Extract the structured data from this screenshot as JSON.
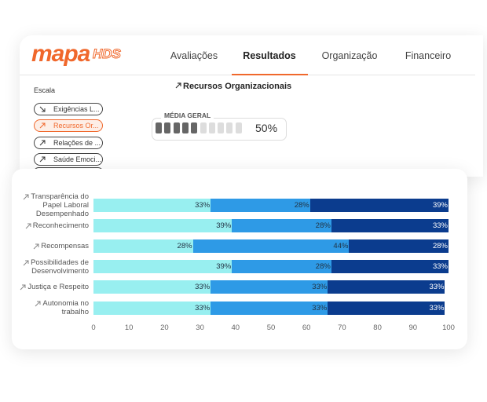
{
  "brand": {
    "name": "mapa",
    "suffix": "HDS"
  },
  "nav": {
    "items": [
      "Avaliações",
      "Resultados",
      "Organização",
      "Financeiro"
    ],
    "active": 1
  },
  "sidebar": {
    "title": "Escala",
    "items": [
      "Exigências L...",
      "Recursos Or...",
      "Relações de ...",
      "Saúde Emoci..."
    ],
    "active": 1
  },
  "heading": "Recursos Organizacionais",
  "media_geral": {
    "label": "MÉDIA GERAL",
    "value": 50,
    "value_label": "50%"
  },
  "chart_data": {
    "type": "stacked-bar-horizontal",
    "categories": [
      "Transparência do Papel Laboral Desempenhado",
      "Reconhecimento",
      "Recompensas",
      "Possibilidades de Desenvolvimento",
      "Justiça e Respeito",
      "Autonomia no trabalho"
    ],
    "series": [
      {
        "color": "#98eff0",
        "values": [
          33,
          39,
          28,
          39,
          33,
          33
        ],
        "value_labels": [
          "33%",
          "39%",
          "28%",
          "39%",
          "33%",
          "33%"
        ]
      },
      {
        "color": "#2e9ae6",
        "values": [
          28,
          28,
          44,
          28,
          33,
          33
        ],
        "value_labels": [
          "28%",
          "28%",
          "44%",
          "28%",
          "33%",
          "33%"
        ]
      },
      {
        "color": "#0b3c8e",
        "values": [
          39,
          33,
          28,
          33,
          33,
          33
        ],
        "value_labels": [
          "39%",
          "33%",
          "28%",
          "33%",
          "33%",
          "33%"
        ]
      }
    ],
    "xlim": [
      0,
      100
    ],
    "xticks": [
      0,
      10,
      20,
      30,
      40,
      50,
      60,
      70,
      80,
      90,
      100
    ]
  }
}
